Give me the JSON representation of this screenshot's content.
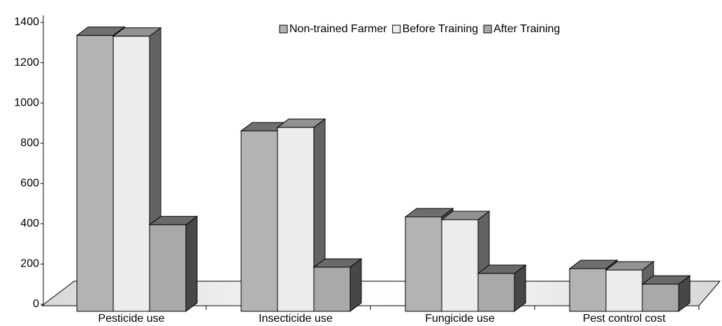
{
  "chart_data": {
    "type": "bar3d",
    "categories": [
      "Pesticide use",
      "Insecticide use",
      "Fungicide use",
      "Pest control cost"
    ],
    "series": [
      {
        "name": "Non-trained Farmer",
        "color": "#b3b3b3",
        "values": [
          1370,
          896,
          469,
          212
        ]
      },
      {
        "name": "Before Training",
        "color": "#ececec",
        "values": [
          1366,
          913,
          455,
          205
        ]
      },
      {
        "name": "After Training",
        "color": "#a9a9a9",
        "values": [
          430,
          219,
          188,
          135
        ]
      }
    ],
    "ylim": [
      0,
      1400
    ],
    "yticks": [
      0,
      200,
      400,
      600,
      800,
      1000,
      1200,
      1400
    ],
    "legend": "top-right"
  }
}
